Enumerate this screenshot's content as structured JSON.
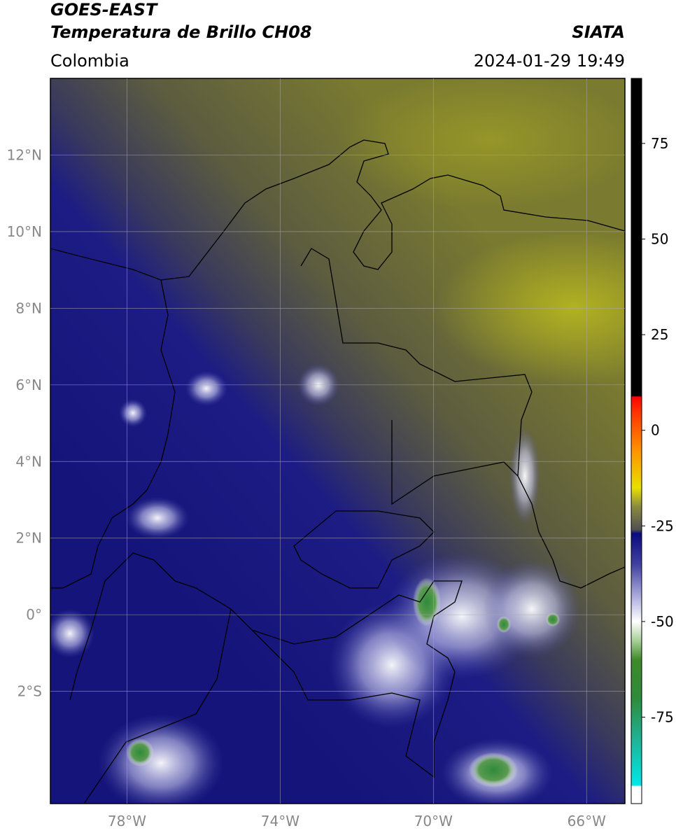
{
  "header": {
    "satellite": "GOES-EAST",
    "product": "Temperatura de Brillo CH08",
    "source": "SIATA",
    "region": "Colombia",
    "datetime": "2024-01-29 19:49"
  },
  "map": {
    "xlim": [
      -80,
      -65
    ],
    "ylim": [
      -4.93,
      14
    ],
    "xticks": [
      {
        "value": -78,
        "label": "78°W"
      },
      {
        "value": -74,
        "label": "74°W"
      },
      {
        "value": -70,
        "label": "70°W"
      },
      {
        "value": -66,
        "label": "66°W"
      }
    ],
    "yticks": [
      {
        "value": 12,
        "label": "12°N"
      },
      {
        "value": 10,
        "label": "10°N"
      },
      {
        "value": 8,
        "label": "8°N"
      },
      {
        "value": 6,
        "label": "6°N"
      },
      {
        "value": 4,
        "label": "4°N"
      },
      {
        "value": 2,
        "label": "2°N"
      },
      {
        "value": 0,
        "label": "0°"
      },
      {
        "value": -2,
        "label": "2°S"
      }
    ],
    "grid": true
  },
  "colorbar": {
    "lim": [
      -97.6,
      92
    ],
    "ticks": [
      75,
      50,
      25,
      0,
      -25,
      -50,
      -75
    ],
    "colormap": [
      {
        "value": -97.6,
        "color": "#ffffff"
      },
      {
        "value": -93,
        "color": "#ffffff"
      },
      {
        "value": -92.9,
        "color": "#00e8e8"
      },
      {
        "value": -80,
        "color": "#20b090"
      },
      {
        "value": -70,
        "color": "#2e8b3a"
      },
      {
        "value": -60,
        "color": "#3f8a2a"
      },
      {
        "value": -55,
        "color": "#a8d098"
      },
      {
        "value": -50,
        "color": "#ffffff"
      },
      {
        "value": -45,
        "color": "#c0c0e8"
      },
      {
        "value": -35,
        "color": "#4040a0"
      },
      {
        "value": -27,
        "color": "#0a0a80"
      },
      {
        "value": -26,
        "color": "#505050"
      },
      {
        "value": -20,
        "color": "#8a8a40"
      },
      {
        "value": -15,
        "color": "#e8e000"
      },
      {
        "value": -5,
        "color": "#ff9000"
      },
      {
        "value": 5,
        "color": "#ff3000"
      },
      {
        "value": 8.8,
        "color": "#ff0000"
      },
      {
        "value": 8.9,
        "color": "#000000"
      },
      {
        "value": 92,
        "color": "#000000"
      }
    ]
  }
}
